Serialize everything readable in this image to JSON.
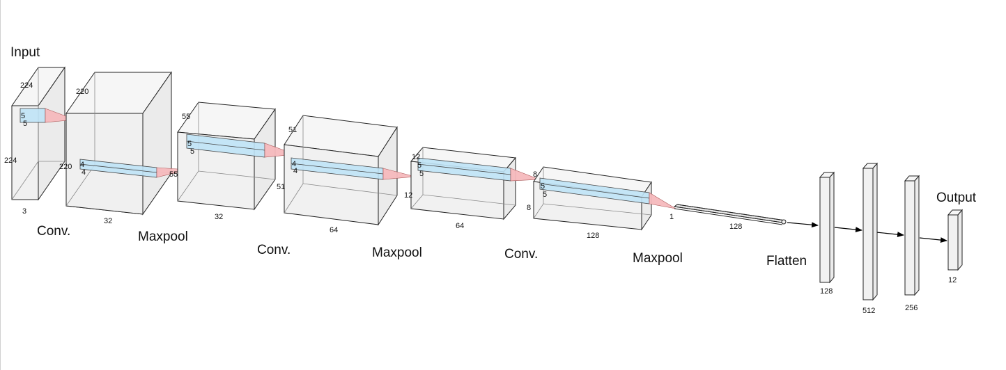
{
  "input": {
    "title": "Input",
    "dims": [
      "224",
      "224",
      "3"
    ],
    "kernel": [
      "5",
      "5"
    ]
  },
  "stage1": {
    "op": "Conv.",
    "dims": [
      "220",
      "220",
      "32"
    ],
    "kernel": [
      "4",
      "4"
    ]
  },
  "stage2": {
    "op": "Maxpool",
    "dims": [
      "55",
      "55",
      "32"
    ],
    "kernel": [
      "5",
      "5"
    ]
  },
  "stage3": {
    "op": "Conv.",
    "dims": [
      "51",
      "51",
      "64"
    ],
    "kernel": [
      "4",
      "4"
    ]
  },
  "stage4": {
    "op": "Maxpool",
    "dims": [
      "12",
      "12",
      "64"
    ],
    "kernel": [
      "5",
      "5"
    ]
  },
  "stage5": {
    "op": "Conv.",
    "dims": [
      "8",
      "8",
      "128"
    ],
    "kernel": [
      "5",
      "5"
    ]
  },
  "stage6": {
    "op": "Maxpool",
    "dims": [
      "1",
      "128"
    ]
  },
  "flatten": {
    "op": "Flatten"
  },
  "dense": [
    "128",
    "512",
    "256"
  ],
  "output": {
    "title": "Output",
    "units": "12"
  }
}
